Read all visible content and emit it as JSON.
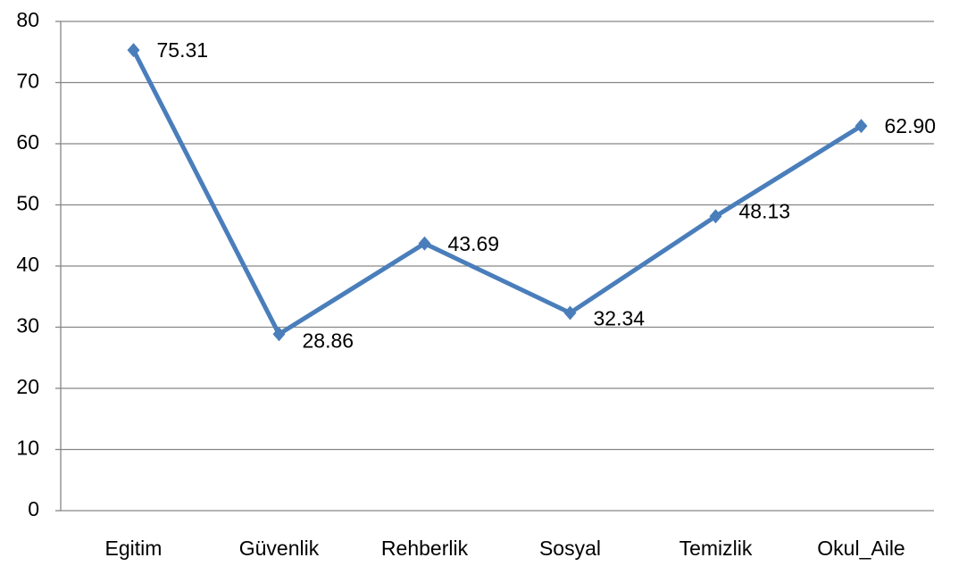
{
  "chart_data": {
    "type": "line",
    "categories": [
      "Egitim",
      "Güvenlik",
      "Rehberlik",
      "Sosyal",
      "Temizlik",
      "Okul_Aile"
    ],
    "series": [
      {
        "color": "#4a7ebb",
        "values": [
          75.31,
          28.86,
          43.69,
          32.34,
          48.13,
          62.9
        ],
        "value_labels": [
          "75.31",
          "28.86",
          "43.69",
          "32.34",
          "48.13",
          "62.90"
        ]
      }
    ],
    "ylim": [
      0,
      80
    ],
    "yticks": [
      0,
      10,
      20,
      30,
      40,
      50,
      60,
      70,
      80
    ],
    "grid": true
  }
}
